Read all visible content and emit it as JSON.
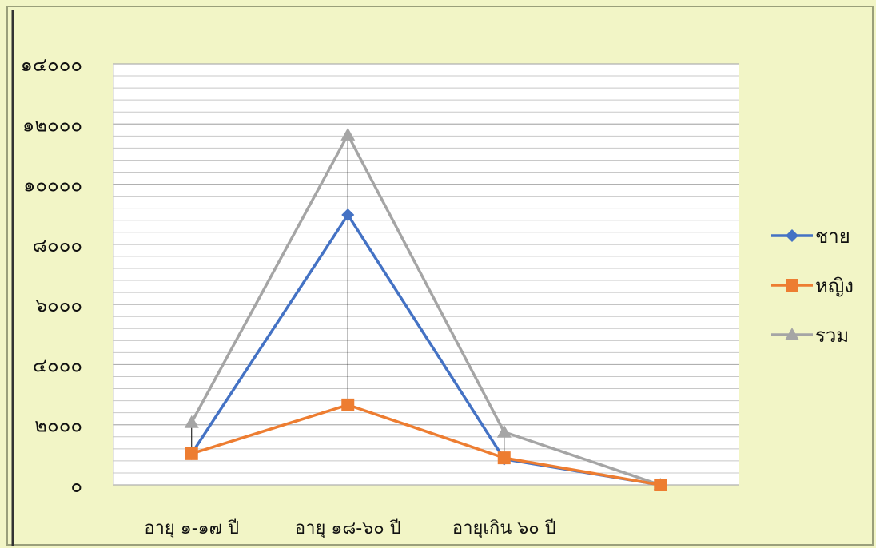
{
  "chart_data": {
    "type": "line",
    "title": "",
    "xlabel": "",
    "ylabel": "",
    "categories": [
      "อายุ ๑-๑๗ ปี",
      "อายุ ๑๘-๖๐ ปี",
      "อายุเกิน ๖๐ ปี",
      ""
    ],
    "ylim": [
      0,
      14000
    ],
    "y_ticks": [
      0,
      2000,
      4000,
      6000,
      8000,
      10000,
      12000,
      14000
    ],
    "y_tick_labels": [
      "๐",
      "๒๐๐๐",
      "๔๐๐๐",
      "๖๐๐๐",
      "๘๐๐๐",
      "๑๐๐๐๐",
      "๑๒๐๐๐",
      "๑๔๐๐๐"
    ],
    "minor_grid_step": 400,
    "grid": true,
    "drop_lines": true,
    "legend_position": "right",
    "background": "#f2f5c6",
    "plot_background": "#ffffff",
    "series": [
      {
        "name": "ชาย",
        "color": "#4472c4",
        "marker": "diamond",
        "values": [
          1040,
          8980,
          860,
          0
        ]
      },
      {
        "name": "หญิง",
        "color": "#ed7d31",
        "marker": "square",
        "values": [
          1040,
          2660,
          900,
          0
        ]
      },
      {
        "name": "รวม",
        "color": "#a5a5a5",
        "marker": "triangle",
        "values": [
          2080,
          11640,
          1760,
          0
        ]
      }
    ]
  }
}
